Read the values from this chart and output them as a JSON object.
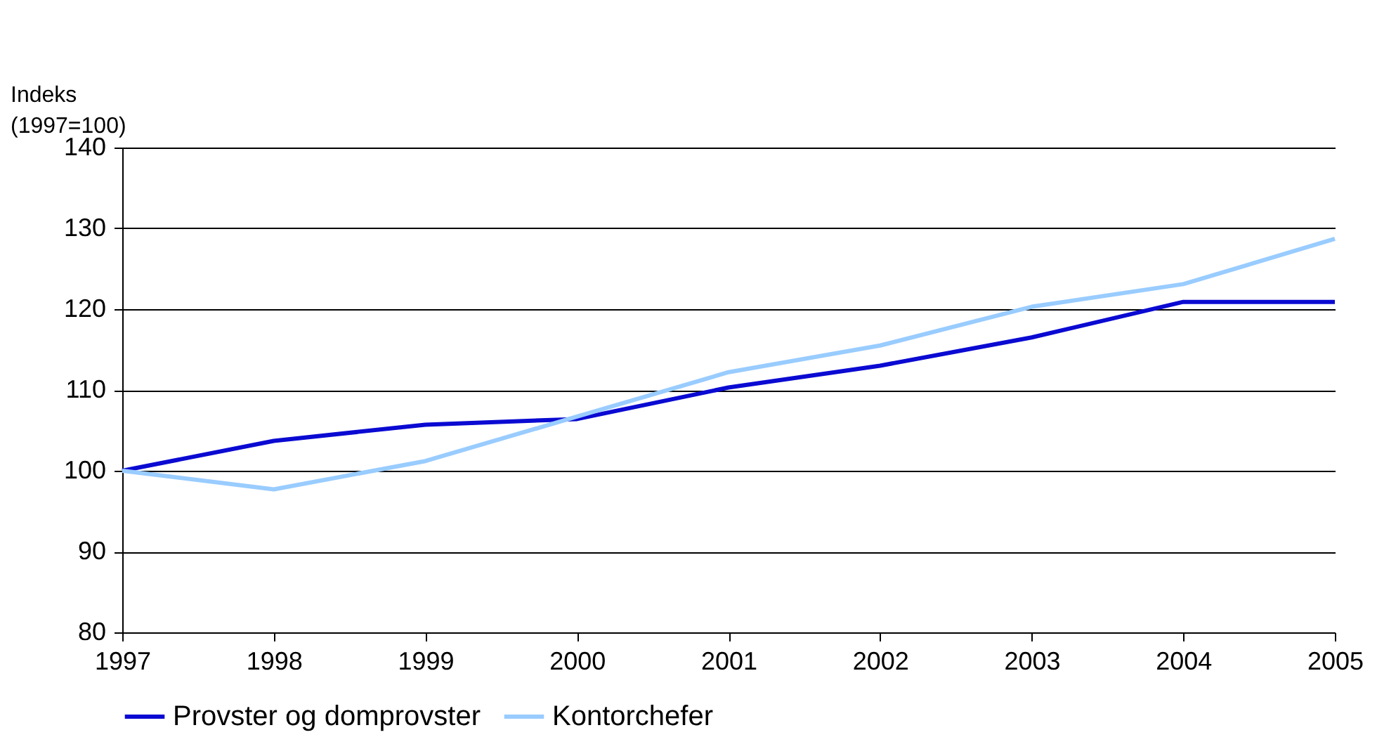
{
  "chart_data": {
    "type": "line",
    "ylabel": "Indeks\n(1997=100)",
    "x": [
      1997,
      1998,
      1999,
      2000,
      2001,
      2002,
      2003,
      2004,
      2005
    ],
    "xlim": [
      1997,
      2005
    ],
    "xticks": [
      1997,
      1998,
      1999,
      2000,
      2001,
      2002,
      2003,
      2004,
      2005
    ],
    "ylim": [
      80,
      140
    ],
    "yticks": [
      80,
      90,
      100,
      110,
      120,
      130,
      140
    ],
    "grid": "y",
    "legend": "bottom",
    "marker": "none",
    "line_style": "solid",
    "series": [
      {
        "name": "Provster og domprovster",
        "color": "#0a0ad2",
        "values": [
          100,
          103.7,
          105.7,
          106.4,
          110.3,
          113.0,
          116.5,
          120.9,
          120.9
        ]
      },
      {
        "name": "Kontorchefer",
        "color": "#99ccff",
        "values": [
          100,
          97.7,
          101.2,
          106.7,
          112.2,
          115.5,
          120.3,
          123.1,
          128.7
        ]
      }
    ]
  }
}
